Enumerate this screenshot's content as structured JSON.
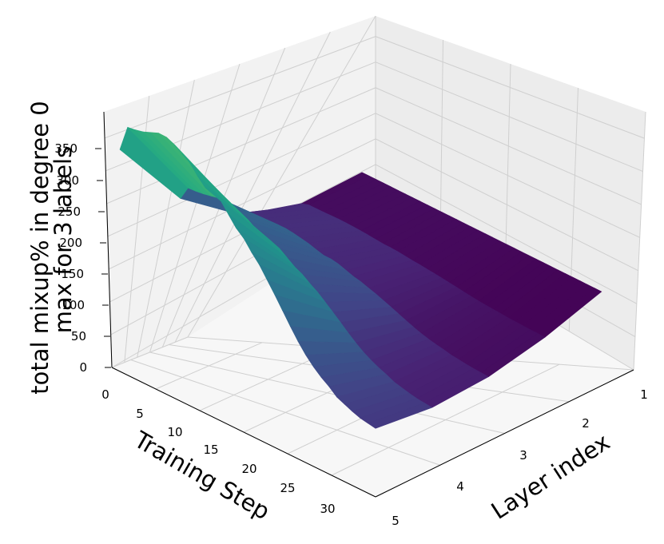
{
  "chart_data": {
    "type": "surface3d",
    "colormap": "viridis",
    "z_axis_label_line1": "total mixup% in degree 0",
    "z_axis_label_line2": "max for 3 labels",
    "x_axis_label": "Training Step",
    "y_axis_label": "Layer index",
    "x_ticks": [
      "0",
      "5",
      "10",
      "15",
      "20",
      "25",
      "30"
    ],
    "y_ticks": [
      "1",
      "2",
      "3",
      "4",
      "5"
    ],
    "z_ticks": [
      "0",
      "50",
      "100",
      "150",
      "200",
      "250",
      "300",
      "350"
    ],
    "x_lim": [
      0,
      33
    ],
    "y_lim": [
      1,
      5
    ],
    "z_lim": [
      0,
      390
    ],
    "grid": true,
    "layer1_values": [
      330,
      370,
      372,
      375,
      380,
      385,
      385,
      380,
      372,
      364,
      350,
      338,
      338,
      330,
      315,
      300,
      290,
      275,
      262,
      245,
      228,
      210,
      192,
      175,
      160,
      148,
      138,
      130,
      120,
      115,
      110,
      106,
      104,
      102
    ],
    "layer5_value": 0,
    "layer_profile": [
      1.0,
      0.55,
      0.25,
      0.08,
      0.0
    ]
  }
}
